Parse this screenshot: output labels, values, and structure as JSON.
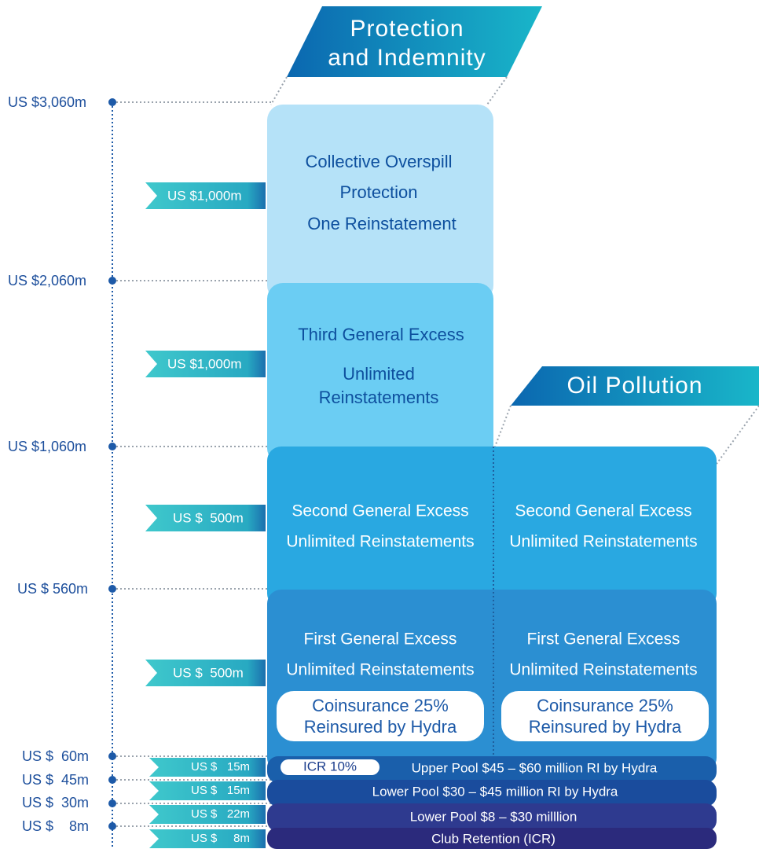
{
  "banners": [
    {
      "lines": [
        "Protection",
        "and Indemnity"
      ]
    },
    {
      "lines": [
        "Oil Pollution"
      ]
    }
  ],
  "axis": {
    "levels": [
      "US $3,060m",
      "US $2,060m",
      "US $1,060m",
      "US $ 560m",
      "US $  60m",
      "US $  45m",
      "US $  30m",
      "US $    8m"
    ]
  },
  "tags": [
    "US $1,000m",
    "US $1,000m",
    "US $  500m",
    "US $  500m",
    "US $   15m",
    "US $   15m",
    "US $   22m",
    "US $     8m"
  ],
  "blocks": [
    {
      "lines": [
        "Collective Overspill",
        "Protection",
        "One Reinstatement"
      ]
    },
    {
      "lines": [
        "Third General Excess",
        "Unlimited",
        "Reinstatements"
      ]
    },
    {
      "left": [
        "Second General Excess",
        "Unlimited Reinstatements"
      ],
      "right": [
        "Second General Excess",
        "Unlimited Reinstatements"
      ]
    },
    {
      "left": [
        "First General Excess",
        "Unlimited Reinstatements"
      ],
      "right": [
        "First General Excess",
        "Unlimited Reinstatements"
      ],
      "left_note": [
        "Coinsurance 25%",
        "Reinsured by Hydra"
      ],
      "right_note": [
        "Coinsurance 25%",
        "Reinsured by Hydra"
      ]
    }
  ],
  "pools": {
    "icr": "ICR 10%",
    "upper": "Upper Pool $45 – $60 million RI by Hydra",
    "lower": "Lower Pool $30 – $45 million RI by Hydra",
    "base": "Lower Pool $8 – $30 milllion",
    "retention": "Club Retention (ICR)"
  }
}
